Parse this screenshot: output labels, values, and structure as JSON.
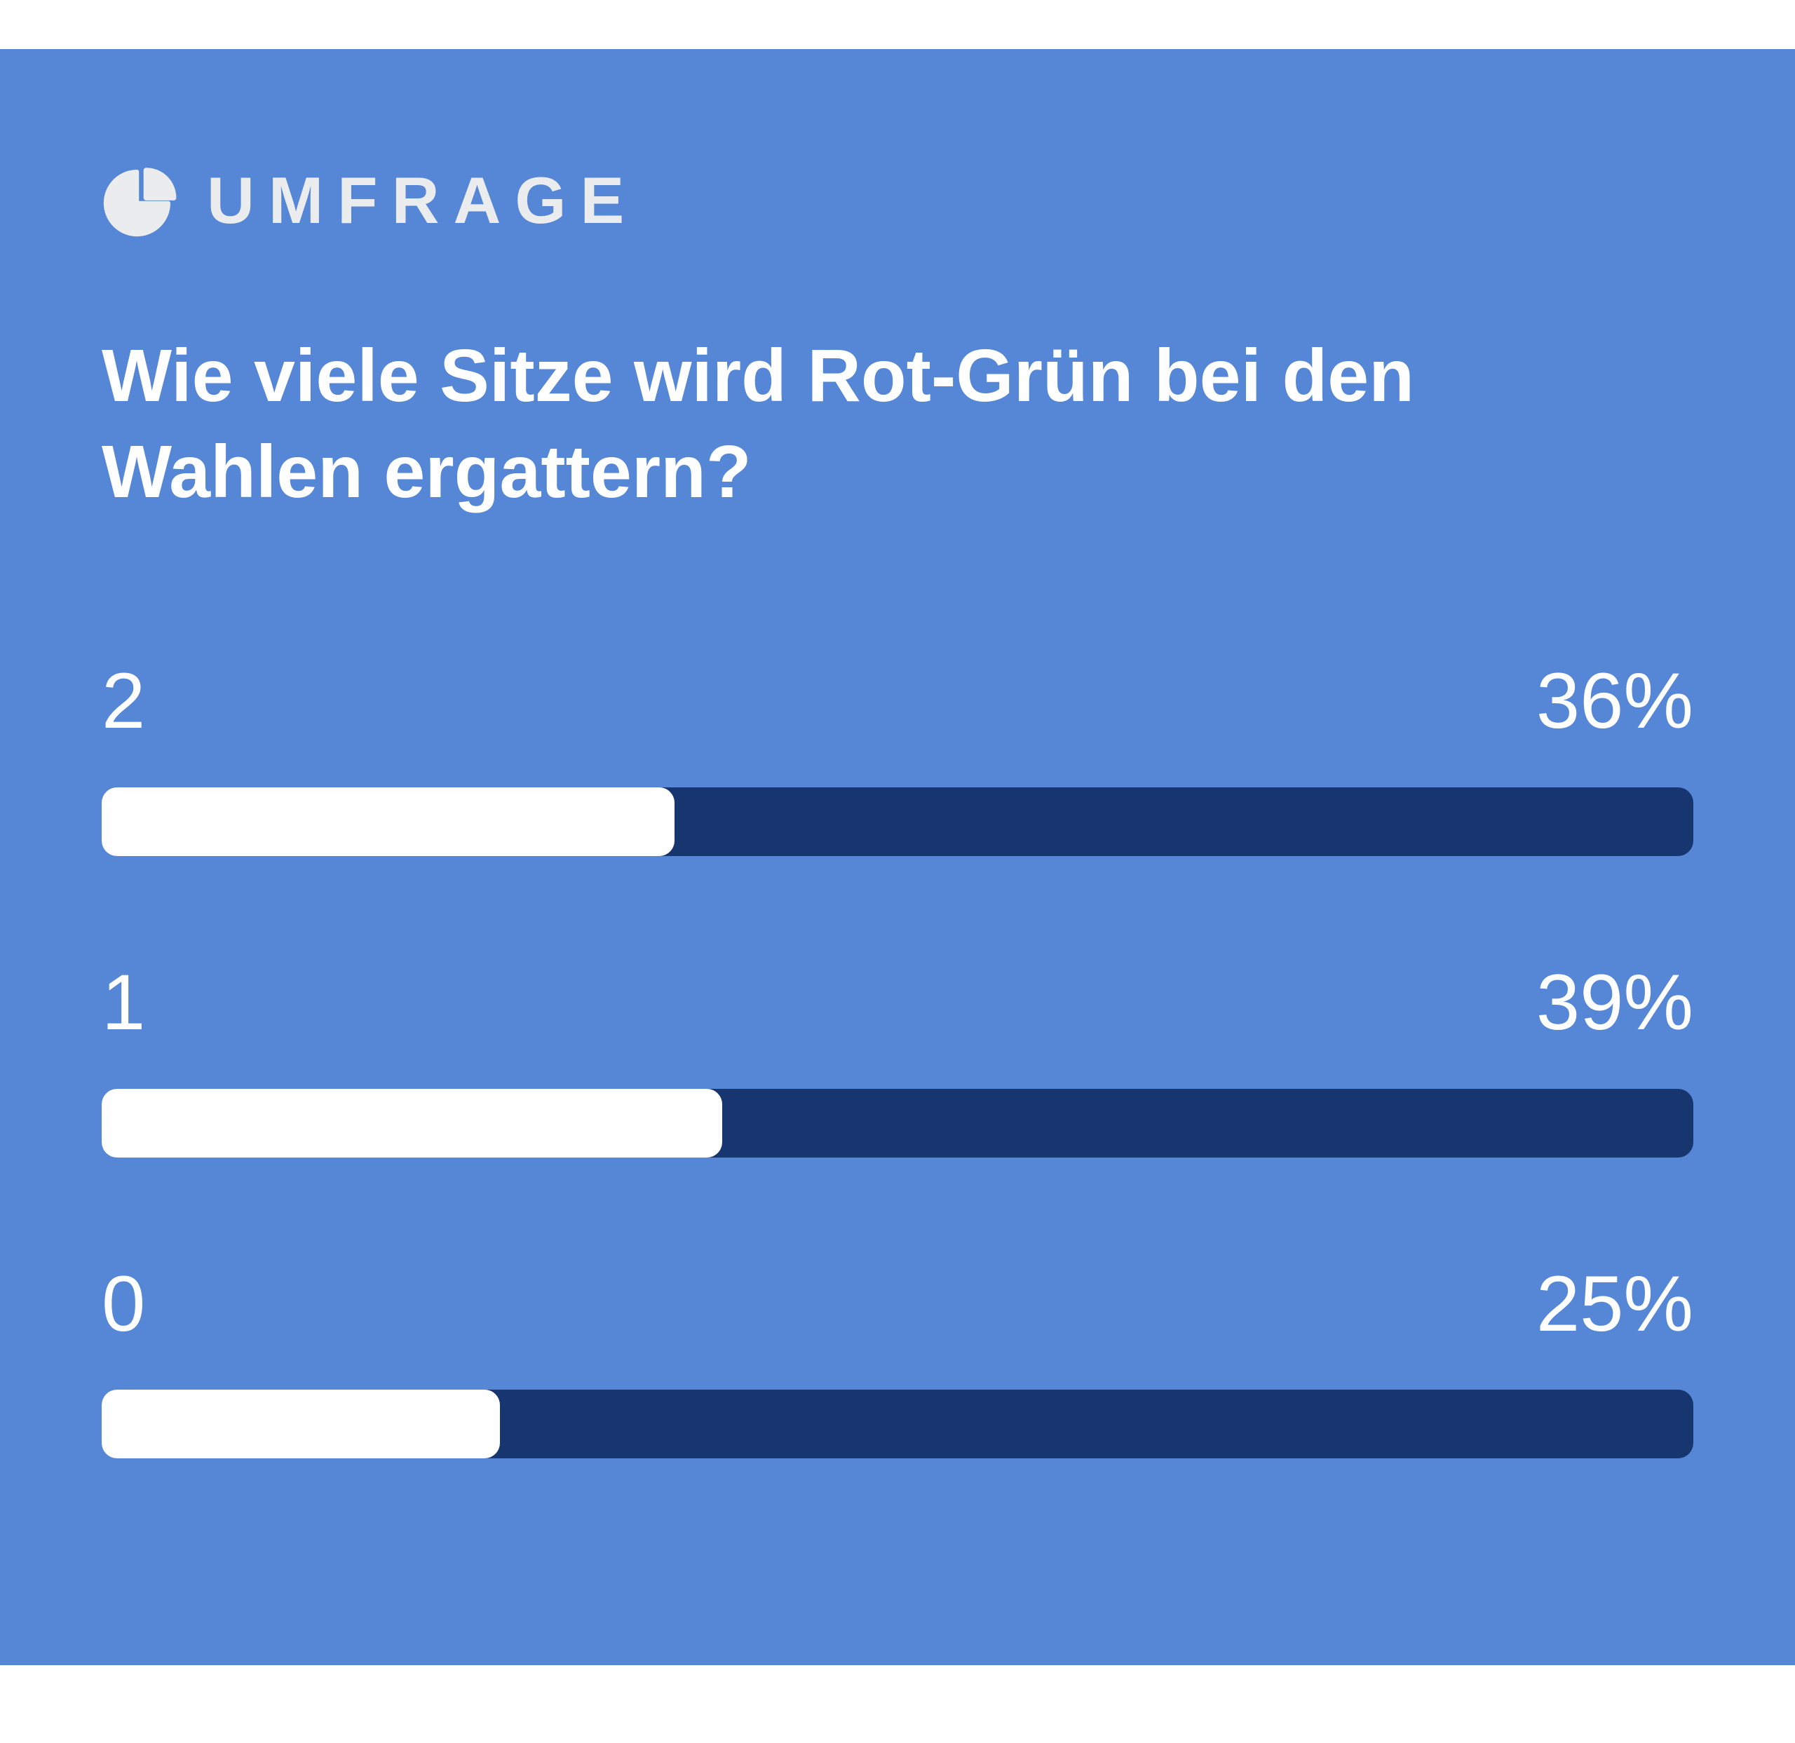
{
  "header": {
    "badge_label": "UMFRAGE",
    "icon": "pie-chart-icon"
  },
  "question": "Wie viele Sitze wird Rot-Grün bei den Wahlen ergattern?",
  "options": [
    {
      "label": "2",
      "percent": 36,
      "percent_label": "36%"
    },
    {
      "label": "1",
      "percent": 39,
      "percent_label": "39%"
    },
    {
      "label": "0",
      "percent": 25,
      "percent_label": "25%"
    }
  ],
  "chart_data": {
    "type": "bar",
    "orientation": "horizontal",
    "title": "Wie viele Sitze wird Rot-Grün bei den Wahlen ergattern?",
    "categories": [
      "2",
      "1",
      "0"
    ],
    "values": [
      36,
      39,
      25
    ],
    "value_labels": [
      "36%",
      "39%",
      "25%"
    ],
    "unit": "%",
    "xlim": [
      0,
      100
    ],
    "grid": false,
    "legend": false
  },
  "colors": {
    "page_bg": "#ffffff",
    "card_bg": "#5587d6",
    "bar_track": "#17356f",
    "bar_fill": "#ffffff",
    "header_text": "#eaecee",
    "text": "#ffffff"
  }
}
